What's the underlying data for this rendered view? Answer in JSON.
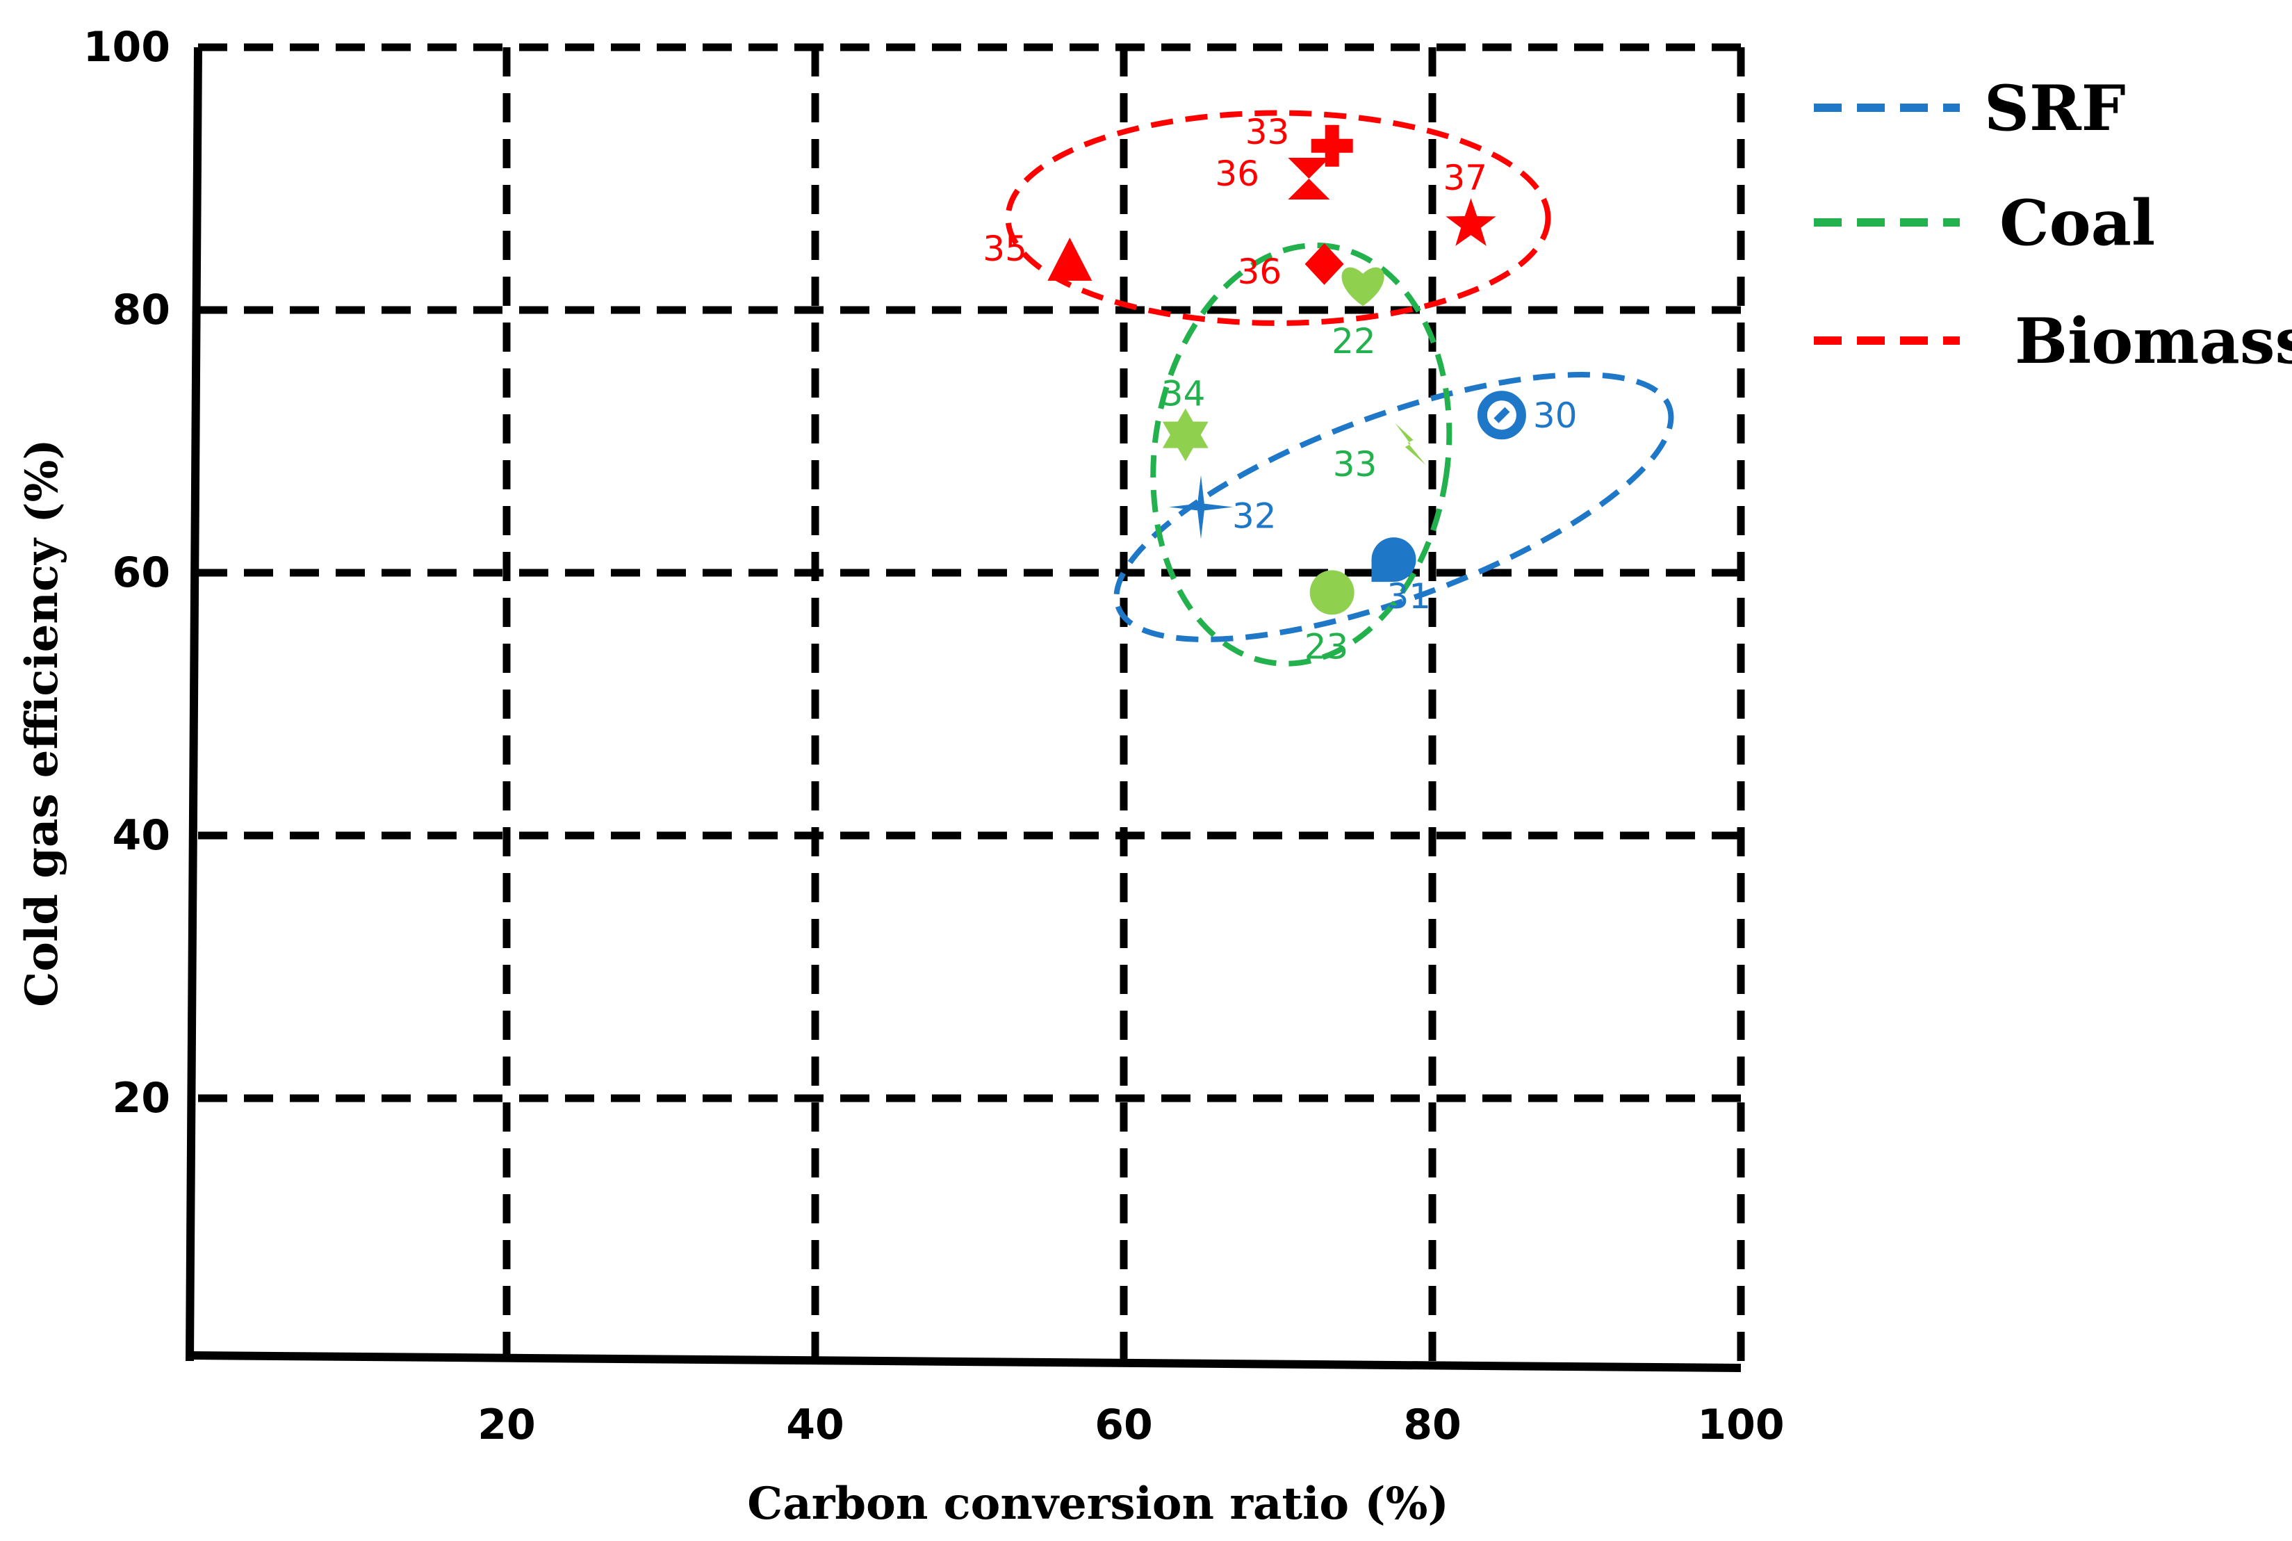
{
  "chart_data": {
    "type": "scatter",
    "title": "",
    "xlabel": "Carbon conversion ratio (%)",
    "ylabel": "Cold gas efficiency (%)",
    "xlim": [
      0,
      100
    ],
    "ylim": [
      0,
      100
    ],
    "x_ticks": [
      "20",
      "40",
      "60",
      "80",
      "100"
    ],
    "y_ticks": [
      "20",
      "40",
      "60",
      "80",
      "100"
    ],
    "grid": true,
    "legend_position": "top-right",
    "series": [
      {
        "name": "SRF",
        "color": "#1f77c8",
        "points": [
          {
            "x": 84.5,
            "y": 72,
            "label": "30",
            "marker": "circle-ring"
          },
          {
            "x": 77.5,
            "y": 61,
            "label": "31",
            "marker": "half-circle"
          },
          {
            "x": 65,
            "y": 65,
            "label": "32",
            "marker": "four-point-star"
          }
        ]
      },
      {
        "name": "Coal",
        "color": "#8fd14f",
        "points": [
          {
            "x": 75.5,
            "y": 82,
            "label": "22",
            "marker": "heart"
          },
          {
            "x": 73.5,
            "y": 58.5,
            "label": "23",
            "marker": "circle"
          },
          {
            "x": 78.5,
            "y": 70,
            "label": "33",
            "marker": "lightning"
          },
          {
            "x": 64,
            "y": 70.5,
            "label": "34",
            "marker": "six-point-star"
          }
        ]
      },
      {
        "name": "Biomass",
        "color": "#ff0000",
        "points": [
          {
            "x": 73.5,
            "y": 92.5,
            "label": "33",
            "marker": "cross"
          },
          {
            "x": 56.5,
            "y": 83.5,
            "label": "35",
            "marker": "triangle"
          },
          {
            "x": 72,
            "y": 90,
            "label": "36",
            "marker": "hourglass"
          },
          {
            "x": 73,
            "y": 83.5,
            "label": "36",
            "marker": "diamond"
          },
          {
            "x": 82.5,
            "y": 86.5,
            "label": "37",
            "marker": "star"
          }
        ]
      }
    ],
    "ellipses": [
      {
        "series": "SRF",
        "color": "#1f77c8",
        "cx": 77.5,
        "cy": 65,
        "rx": 19,
        "ry": 7,
        "rotation": -20
      },
      {
        "series": "Coal",
        "color": "#22b14c",
        "cx": 71.5,
        "cy": 69,
        "rx": 9.5,
        "ry": 16,
        "rotation": 8
      },
      {
        "series": "Biomass",
        "color": "#ff0000",
        "cx": 70,
        "cy": 87,
        "rx": 17.5,
        "ry": 8,
        "rotation": 0
      }
    ]
  }
}
